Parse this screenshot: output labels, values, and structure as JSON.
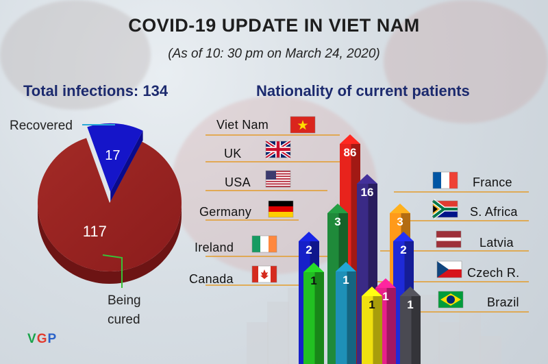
{
  "header": {
    "title": "COVID-19 UPDATE IN VIET NAM",
    "subtitle": "(As of 10: 30 pm on March 24, 2020)"
  },
  "headings": {
    "total": "Total infections: 134",
    "nationality": "Nationality of current patients"
  },
  "pie_labels": {
    "being_cured_line1": "Being",
    "being_cured_line2": "cured"
  },
  "chart_data": [
    {
      "type": "pie",
      "categories": [
        "Recovered",
        "Being cured"
      ],
      "values": [
        17,
        117
      ],
      "colors": [
        "#1515c9",
        "#9e2424"
      ]
    },
    {
      "type": "bar",
      "categories": [
        "Viet Nam",
        "UK",
        "USA",
        "Germany",
        "Ireland",
        "Canada",
        "France",
        "S. Africa",
        "Latvia",
        "Czech R.",
        "Brazil"
      ],
      "values": [
        86,
        16,
        3,
        2,
        1,
        1,
        3,
        2,
        1,
        1,
        1
      ],
      "colors": [
        "#e8231c",
        "#3a2a86",
        "#1f8a3a",
        "#1620c8",
        "#1e90b8",
        "#22c022",
        "#ff9a1a",
        "#1e2ad8",
        "#e8208a",
        "#f0e010",
        "#4a4a52"
      ]
    }
  ],
  "flags": {
    "Viet Nam": "vietnam-flag",
    "UK": "uk-flag",
    "USA": "usa-flag",
    "Germany": "germany-flag",
    "Ireland": "ireland-flag",
    "Canada": "canada-flag",
    "France": "france-flag",
    "S. Africa": "south-africa-flag",
    "Latvia": "latvia-flag",
    "Czech R.": "czech-flag",
    "Brazil": "brazil-flag"
  }
}
